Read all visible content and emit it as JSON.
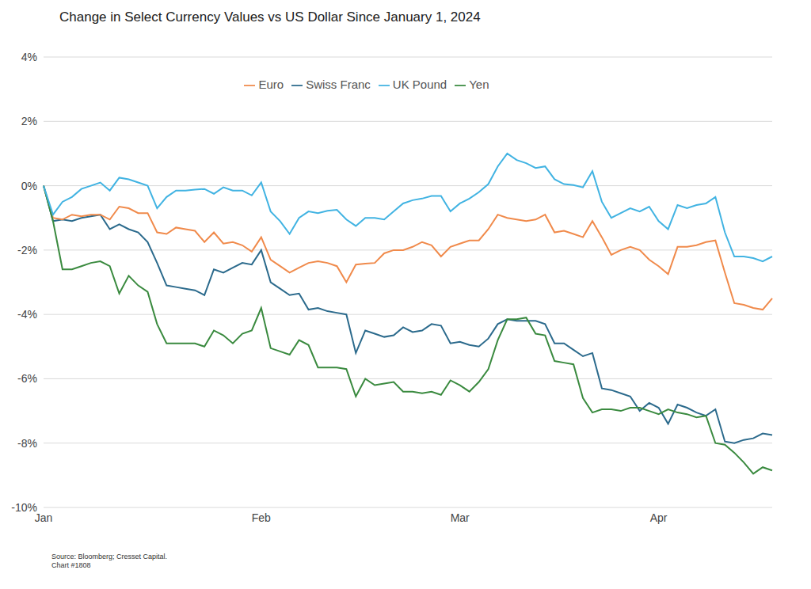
{
  "chart_data": {
    "type": "line",
    "title": "Change in Select Currency Values vs US Dollar Since January 1, 2024",
    "source": "Source: Bloomberg; Cresset Capital.",
    "chart_number": "Chart #1808",
    "categories": [
      "Jan",
      null,
      null,
      null,
      null,
      null,
      null,
      null,
      null,
      null,
      null,
      null,
      null,
      null,
      null,
      null,
      null,
      null,
      null,
      null,
      null,
      null,
      null,
      "Feb",
      null,
      null,
      null,
      null,
      null,
      null,
      null,
      null,
      null,
      null,
      null,
      null,
      null,
      null,
      null,
      null,
      null,
      null,
      null,
      null,
      "Mar",
      null,
      null,
      null,
      null,
      null,
      null,
      null,
      null,
      null,
      null,
      null,
      null,
      null,
      null,
      null,
      null,
      null,
      null,
      null,
      null,
      "Apr",
      null,
      null,
      null,
      null,
      null,
      null,
      null,
      null,
      null,
      null,
      null,
      null
    ],
    "series": [
      {
        "name": "Swiss Franc",
        "color": "#2b6a8c",
        "values": [
          0,
          -1.1,
          -1.05,
          -1.1,
          -1.0,
          -0.95,
          -0.9,
          -1.35,
          -1.2,
          -1.35,
          -1.45,
          -1.75,
          -2.4,
          -3.1,
          -3.15,
          -3.2,
          -3.25,
          -3.4,
          -2.6,
          -2.7,
          -2.55,
          -2.4,
          -2.45,
          -2.0,
          -3.0,
          -3.2,
          -3.4,
          -3.35,
          -3.85,
          -3.8,
          -3.9,
          -3.95,
          -4.0,
          -5.2,
          -4.5,
          -4.6,
          -4.7,
          -4.65,
          -4.4,
          -4.55,
          -4.5,
          -4.3,
          -4.35,
          -4.9,
          -4.85,
          -4.95,
          -5.0,
          -4.75,
          -4.3,
          -4.15,
          -4.2,
          -4.2,
          -4.2,
          -4.3,
          -4.9,
          -4.9,
          -5.1,
          -5.3,
          -5.2,
          -6.3,
          -6.35,
          -6.45,
          -6.55,
          -7.0,
          -6.75,
          -6.9,
          -7.4,
          -6.8,
          -6.9,
          -7.05,
          -7.15,
          -6.95,
          -7.95,
          -8.0,
          -7.9,
          -7.85,
          -7.7,
          -7.75
        ]
      },
      {
        "name": "Euro",
        "color": "#f08a4b",
        "values": [
          0,
          -1.0,
          -1.05,
          -0.9,
          -0.95,
          -0.9,
          -0.9,
          -1.05,
          -0.65,
          -0.7,
          -0.85,
          -0.85,
          -1.45,
          -1.5,
          -1.3,
          -1.35,
          -1.4,
          -1.75,
          -1.45,
          -1.8,
          -1.75,
          -1.85,
          -2.05,
          -1.6,
          -2.3,
          -2.5,
          -2.7,
          -2.55,
          -2.4,
          -2.35,
          -2.4,
          -2.5,
          -3.0,
          -2.45,
          -2.42,
          -2.4,
          -2.1,
          -2.0,
          -2.0,
          -1.9,
          -1.75,
          -1.85,
          -2.2,
          -1.9,
          -1.8,
          -1.7,
          -1.7,
          -1.35,
          -0.9,
          -1.0,
          -1.05,
          -1.1,
          -1.05,
          -0.9,
          -1.45,
          -1.4,
          -1.5,
          -1.6,
          -1.1,
          -1.6,
          -2.15,
          -2.0,
          -1.9,
          -2.0,
          -2.3,
          -2.5,
          -2.75,
          -1.9,
          -1.9,
          -1.85,
          -1.75,
          -1.7,
          -2.7,
          -3.65,
          -3.7,
          -3.8,
          -3.85,
          -3.5
        ]
      },
      {
        "name": "Yen",
        "color": "#3a8a3f",
        "values": [
          0,
          -1.1,
          -2.6,
          -2.6,
          -2.5,
          -2.4,
          -2.35,
          -2.5,
          -3.35,
          -2.8,
          -3.1,
          -3.3,
          -4.3,
          -4.9,
          -4.9,
          -4.9,
          -4.9,
          -5.0,
          -4.5,
          -4.65,
          -4.9,
          -4.6,
          -4.5,
          -3.8,
          -5.05,
          -5.15,
          -5.25,
          -4.8,
          -4.95,
          -5.65,
          -5.65,
          -5.65,
          -5.7,
          -6.55,
          -6.0,
          -6.2,
          -6.15,
          -6.1,
          -6.4,
          -6.4,
          -6.45,
          -6.4,
          -6.5,
          -6.05,
          -6.2,
          -6.4,
          -6.1,
          -5.7,
          -4.8,
          -4.15,
          -4.15,
          -4.1,
          -4.6,
          -4.65,
          -5.45,
          -5.5,
          -5.55,
          -6.6,
          -7.05,
          -6.95,
          -6.95,
          -7.0,
          -6.9,
          -6.9,
          -7.0,
          -7.1,
          -6.95,
          -7.05,
          -7.1,
          -7.2,
          -7.15,
          -8.0,
          -8.05,
          -8.3,
          -8.6,
          -8.95,
          -8.75,
          -8.85
        ]
      },
      {
        "name": "UK Pound",
        "color": "#41b3e2",
        "values": [
          0,
          -0.9,
          -0.5,
          -0.35,
          -0.1,
          0.0,
          0.1,
          -0.15,
          0.25,
          0.2,
          0.1,
          0.0,
          -0.7,
          -0.35,
          -0.15,
          -0.15,
          -0.12,
          -0.1,
          -0.25,
          -0.05,
          -0.15,
          -0.15,
          -0.3,
          0.1,
          -0.8,
          -1.1,
          -1.5,
          -1.0,
          -0.8,
          -0.85,
          -0.78,
          -0.75,
          -1.05,
          -1.25,
          -1.0,
          -1.0,
          -1.05,
          -0.8,
          -0.55,
          -0.45,
          -0.4,
          -0.32,
          -0.32,
          -0.8,
          -0.55,
          -0.4,
          -0.2,
          0.05,
          0.6,
          1.0,
          0.8,
          0.7,
          0.55,
          0.6,
          0.2,
          0.05,
          0.02,
          -0.05,
          0.45,
          -0.5,
          -1.0,
          -0.85,
          -0.7,
          -0.8,
          -0.65,
          -1.1,
          -1.35,
          -0.6,
          -0.7,
          -0.6,
          -0.55,
          -0.35,
          -1.45,
          -2.2,
          -2.2,
          -2.25,
          -2.35,
          -2.2
        ]
      }
    ],
    "ylim": [
      -10,
      4
    ],
    "yticks": [
      {
        "value": -10,
        "label": "-10%"
      },
      {
        "value": -8,
        "label": "-8%"
      },
      {
        "value": -6,
        "label": "-6%"
      },
      {
        "value": -4,
        "label": "-4%"
      },
      {
        "value": -2,
        "label": "-2%"
      },
      {
        "value": 0,
        "label": "0%"
      },
      {
        "value": 2,
        "label": "2%"
      },
      {
        "value": 4,
        "label": "4%"
      }
    ],
    "grid": true,
    "legend": "top"
  }
}
